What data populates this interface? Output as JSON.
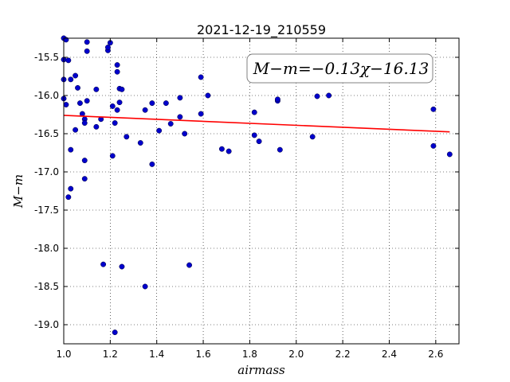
{
  "chart_data": {
    "type": "scatter",
    "title": "2021-12-19_210559",
    "xlabel": "airmass",
    "ylabel": "M−m",
    "xlim": [
      1.0,
      2.7
    ],
    "ylim": [
      -19.25,
      -15.25
    ],
    "x_ticks": [
      "1.0",
      "1.2",
      "1.4",
      "1.6",
      "1.8",
      "2.0",
      "2.2",
      "2.4",
      "2.6"
    ],
    "y_ticks": [
      "-15.5",
      "-16.0",
      "-16.5",
      "-17.0",
      "-17.5",
      "-18.0",
      "-18.5",
      "-19.0"
    ],
    "grid": true,
    "annotation": "M−m=−0.13χ−16.13",
    "fit": {
      "slope": -0.13,
      "intercept": -16.13,
      "x_range": [
        1.0,
        2.66
      ],
      "color": "#ff0000"
    },
    "points_color": "#0000cc",
    "points": [
      [
        1.0,
        -15.25
      ],
      [
        1.01,
        -15.27
      ],
      [
        1.0,
        -15.53
      ],
      [
        1.02,
        -15.54
      ],
      [
        1.0,
        -15.79
      ],
      [
        1.03,
        -15.79
      ],
      [
        1.05,
        -15.74
      ],
      [
        1.0,
        -16.04
      ],
      [
        1.01,
        -16.12
      ],
      [
        1.06,
        -15.9
      ],
      [
        1.07,
        -16.1
      ],
      [
        1.1,
        -16.07
      ],
      [
        1.08,
        -16.24
      ],
      [
        1.09,
        -16.31
      ],
      [
        1.09,
        -16.36
      ],
      [
        1.05,
        -16.45
      ],
      [
        1.14,
        -15.92
      ],
      [
        1.14,
        -16.41
      ],
      [
        1.1,
        -15.3
      ],
      [
        1.1,
        -15.42
      ],
      [
        1.19,
        -15.41
      ],
      [
        1.19,
        -15.37
      ],
      [
        1.2,
        -15.31
      ],
      [
        1.23,
        -15.6
      ],
      [
        1.23,
        -15.69
      ],
      [
        1.24,
        -15.91
      ],
      [
        1.25,
        -15.92
      ],
      [
        1.24,
        -16.09
      ],
      [
        1.23,
        -16.19
      ],
      [
        1.21,
        -16.14
      ],
      [
        1.22,
        -16.36
      ],
      [
        1.16,
        -16.31
      ],
      [
        1.27,
        -16.54
      ],
      [
        1.21,
        -16.79
      ],
      [
        1.03,
        -16.71
      ],
      [
        1.09,
        -16.85
      ],
      [
        1.03,
        -17.22
      ],
      [
        1.09,
        -17.09
      ],
      [
        1.02,
        -17.33
      ],
      [
        1.33,
        -16.62
      ],
      [
        1.35,
        -16.19
      ],
      [
        1.38,
        -16.1
      ],
      [
        1.41,
        -16.46
      ],
      [
        1.44,
        -16.1
      ],
      [
        1.46,
        -16.37
      ],
      [
        1.5,
        -16.28
      ],
      [
        1.52,
        -16.5
      ],
      [
        1.5,
        -16.03
      ],
      [
        1.59,
        -15.76
      ],
      [
        1.62,
        -16.0
      ],
      [
        1.59,
        -16.24
      ],
      [
        1.68,
        -16.7
      ],
      [
        1.71,
        -16.73
      ],
      [
        1.38,
        -16.9
      ],
      [
        1.82,
        -16.22
      ],
      [
        1.82,
        -16.52
      ],
      [
        1.84,
        -16.6
      ],
      [
        1.92,
        -16.07
      ],
      [
        1.92,
        -16.05
      ],
      [
        1.93,
        -16.71
      ],
      [
        2.07,
        -16.54
      ],
      [
        2.09,
        -16.01
      ],
      [
        2.14,
        -16.0
      ],
      [
        2.59,
        -16.18
      ],
      [
        2.59,
        -16.66
      ],
      [
        2.66,
        -16.77
      ],
      [
        1.17,
        -18.21
      ],
      [
        1.25,
        -18.24
      ],
      [
        1.54,
        -18.22
      ],
      [
        1.35,
        -18.5
      ],
      [
        1.22,
        -19.1
      ]
    ]
  }
}
